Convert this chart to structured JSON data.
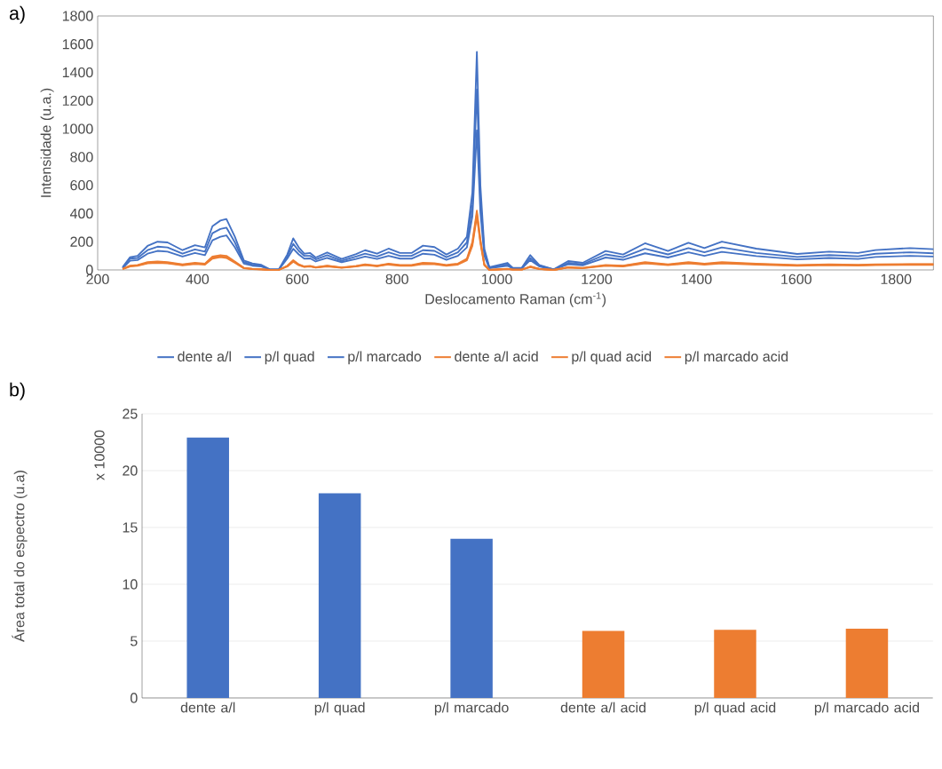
{
  "chart_data": [
    {
      "type": "line",
      "xlabel": "Deslocamento Raman (cm$^{-1}$)",
      "ylabel": "Intensidade (u.a.)",
      "annotations": [
        "a)"
      ],
      "xlim": [
        200,
        1875
      ],
      "ylim": [
        0,
        1800
      ],
      "xticks": [
        200,
        400,
        600,
        800,
        1000,
        1200,
        1400,
        1600,
        1800
      ],
      "yticks": [
        0,
        200,
        400,
        600,
        800,
        1000,
        1200,
        1400,
        1600,
        1800
      ],
      "grid": false,
      "legend": "bottom",
      "marker": "none",
      "line_style": "solid",
      "x": [
        250,
        265,
        280,
        300,
        320,
        340,
        370,
        395,
        415,
        430,
        446,
        458,
        475,
        493,
        510,
        528,
        545,
        563,
        580,
        592,
        603,
        614,
        626,
        637,
        660,
        689,
        718,
        736,
        760,
        783,
        806,
        829,
        852,
        875,
        899,
        922,
        940,
        951,
        960,
        967,
        975,
        985,
        1021,
        1032,
        1050,
        1067,
        1085,
        1114,
        1143,
        1172,
        1218,
        1253,
        1297,
        1343,
        1384,
        1416,
        1451,
        1520,
        1602,
        1666,
        1724,
        1759,
        1828,
        1875
      ],
      "series": [
        {
          "name": "dente a/l",
          "color": "#4472c4",
          "values": [
            20,
            90,
            100,
            170,
            200,
            195,
            140,
            175,
            160,
            310,
            350,
            361,
            235,
            67,
            46,
            36,
            4,
            4,
            109,
            224,
            160,
            115,
            120,
            88,
            124,
            78,
            113,
            140,
            115,
            151,
            120,
            120,
            172,
            162,
            109,
            151,
            235,
            550,
            1546,
            600,
            150,
            20,
            50,
            15,
            15,
            105,
            36,
            4,
            63,
            50,
            134,
            109,
            189,
            134,
            193,
            155,
            201,
            151,
            113,
            130,
            120,
            141,
            155,
            147
          ]
        },
        {
          "name": "p/l quad",
          "color": "#4472c4",
          "values": [
            15,
            80,
            85,
            140,
            165,
            160,
            115,
            145,
            130,
            260,
            290,
            300,
            195,
            55,
            38,
            30,
            3,
            3,
            95,
            185,
            135,
            100,
            100,
            75,
            105,
            65,
            95,
            115,
            95,
            125,
            100,
            100,
            140,
            135,
            90,
            125,
            195,
            460,
            1280,
            500,
            125,
            15,
            40,
            12,
            12,
            85,
            30,
            3,
            50,
            40,
            110,
            90,
            150,
            110,
            155,
            125,
            160,
            120,
            92,
            105,
            97,
            115,
            125,
            118
          ]
        },
        {
          "name": "p/l marcado",
          "color": "#4472c4",
          "values": [
            12,
            65,
            70,
            115,
            135,
            130,
            95,
            120,
            105,
            210,
            235,
            245,
            160,
            45,
            30,
            25,
            2,
            2,
            80,
            150,
            110,
            80,
            82,
            60,
            85,
            55,
            78,
            95,
            78,
            100,
            80,
            80,
            115,
            108,
            72,
            100,
            160,
            380,
            990,
            410,
            100,
            12,
            30,
            10,
            10,
            70,
            25,
            2,
            40,
            32,
            88,
            72,
            118,
            88,
            125,
            100,
            128,
            98,
            75,
            85,
            78,
            92,
            100,
            95
          ]
        },
        {
          "name": "dente a/l acid",
          "color": "#ed7d31",
          "values": [
            8,
            30,
            35,
            55,
            60,
            55,
            40,
            50,
            45,
            95,
            105,
            100,
            60,
            15,
            8,
            5,
            0,
            0,
            30,
            70,
            40,
            25,
            28,
            20,
            30,
            18,
            28,
            40,
            30,
            45,
            35,
            35,
            50,
            48,
            35,
            45,
            80,
            200,
            420,
            220,
            40,
            0,
            8,
            2,
            2,
            25,
            8,
            0,
            20,
            15,
            35,
            30,
            55,
            40,
            55,
            45,
            55,
            45,
            35,
            40,
            37,
            40,
            42,
            42
          ]
        },
        {
          "name": "p/l quad acid",
          "color": "#ed7d31",
          "values": [
            7,
            27,
            32,
            50,
            55,
            50,
            36,
            46,
            42,
            88,
            97,
            92,
            55,
            13,
            7,
            4,
            0,
            0,
            27,
            64,
            37,
            23,
            26,
            18,
            28,
            16,
            26,
            37,
            28,
            42,
            32,
            32,
            46,
            44,
            32,
            42,
            74,
            185,
            400,
            205,
            36,
            0,
            7,
            2,
            2,
            22,
            7,
            0,
            18,
            13,
            32,
            28,
            50,
            37,
            50,
            42,
            50,
            42,
            32,
            37,
            34,
            37,
            39,
            39
          ]
        },
        {
          "name": "p/l marcado acid",
          "color": "#ed7d31",
          "values": [
            6,
            25,
            30,
            46,
            50,
            46,
            33,
            42,
            38,
            80,
            90,
            85,
            50,
            12,
            6,
            3,
            0,
            0,
            24,
            58,
            34,
            21,
            24,
            16,
            25,
            15,
            24,
            34,
            26,
            38,
            30,
            30,
            42,
            40,
            29,
            38,
            68,
            170,
            380,
            190,
            33,
            0,
            6,
            2,
            2,
            20,
            6,
            0,
            16,
            12,
            29,
            25,
            46,
            34,
            46,
            38,
            46,
            38,
            30,
            34,
            31,
            34,
            36,
            36
          ]
        }
      ]
    },
    {
      "type": "bar",
      "ylabel": "Área total do espectro (u.a)",
      "annotations": [
        "b)",
        "x 10000"
      ],
      "categories": [
        "dente a/l",
        "p/l quad",
        "p/l marcado",
        "dente a/l acid",
        "p/l quad acid",
        "p/l marcado acid"
      ],
      "values": [
        22.9,
        18.0,
        14.0,
        5.9,
        6.0,
        6.1
      ],
      "colors": [
        "#4472c4",
        "#4472c4",
        "#4472c4",
        "#ed7d31",
        "#ed7d31",
        "#ed7d31"
      ],
      "ylim": [
        0,
        25
      ],
      "yticks": [
        0,
        5,
        10,
        15,
        20,
        25
      ],
      "grid": "y",
      "legend": false
    }
  ]
}
